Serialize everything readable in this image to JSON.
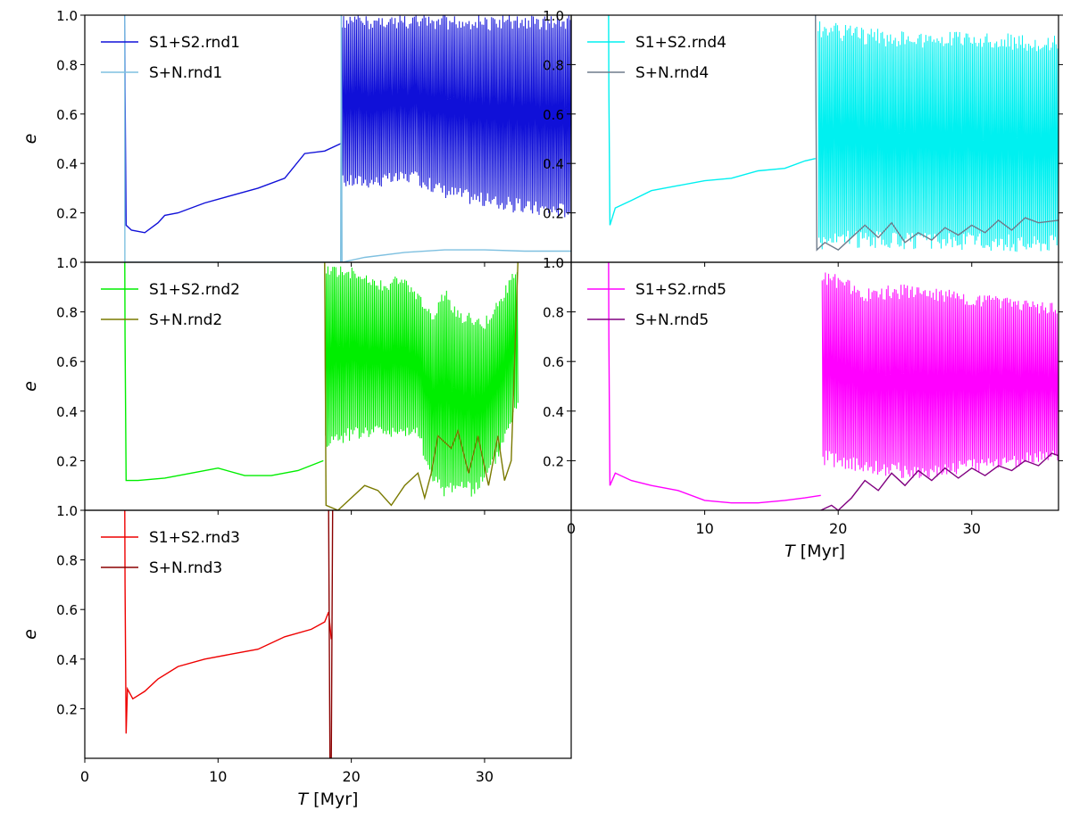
{
  "chart_data": [
    {
      "type": "line",
      "xlim": [
        0,
        36.5
      ],
      "ylim": [
        0,
        1.0
      ],
      "yticks": [
        0.2,
        0.4,
        0.6,
        0.8,
        1.0
      ],
      "ylabel": "e",
      "legend_position": "top-left",
      "series": [
        {
          "name": "S1+S2.rnd1",
          "color": "#1010d8",
          "oscillating_start": 19.3,
          "oscillating_end": 36.5,
          "points": [
            [
              3.0,
              1.0
            ],
            [
              3.02,
              0.7
            ],
            [
              3.1,
              0.15
            ],
            [
              3.5,
              0.13
            ],
            [
              4.5,
              0.12
            ],
            [
              5.5,
              0.16
            ],
            [
              6.0,
              0.19
            ],
            [
              7.0,
              0.2
            ],
            [
              9.0,
              0.24
            ],
            [
              11.0,
              0.27
            ],
            [
              13.0,
              0.3
            ],
            [
              15.0,
              0.34
            ],
            [
              16.5,
              0.44
            ],
            [
              18.0,
              0.45
            ],
            [
              19.2,
              0.48
            ]
          ],
          "upper": [
            [
              19.3,
              1.0
            ],
            [
              36.5,
              1.0
            ]
          ],
          "lower": [
            [
              19.3,
              0.3
            ],
            [
              22.0,
              0.3
            ],
            [
              24.5,
              0.32
            ],
            [
              27.0,
              0.26
            ],
            [
              30.0,
              0.22
            ],
            [
              33.0,
              0.19
            ],
            [
              35.0,
              0.18
            ],
            [
              36.5,
              0.18
            ]
          ]
        },
        {
          "name": "S+N.rnd1",
          "color": "#7ec0e0",
          "points": [
            [
              3.0,
              1.0
            ],
            [
              3.01,
              0.0
            ],
            [
              19.2,
              0.0
            ],
            [
              19.25,
              1.0
            ],
            [
              19.3,
              0.0
            ],
            [
              21.0,
              0.02
            ],
            [
              24.0,
              0.04
            ],
            [
              27.0,
              0.05
            ],
            [
              30.0,
              0.05
            ],
            [
              33.0,
              0.045
            ],
            [
              36.5,
              0.045
            ]
          ]
        }
      ]
    },
    {
      "type": "line",
      "xlim": [
        0,
        36.5
      ],
      "ylim": [
        0,
        1.0
      ],
      "yticks": [
        0.2,
        0.4,
        0.6,
        0.8,
        1.0
      ],
      "ylabel": "e",
      "legend_position": "top-left",
      "series": [
        {
          "name": "S1+S2.rnd2",
          "color": "#00ee00",
          "oscillating_start": 18.0,
          "oscillating_end": 32.5,
          "points": [
            [
              3.0,
              1.0
            ],
            [
              3.02,
              0.7
            ],
            [
              3.1,
              0.12
            ],
            [
              4.0,
              0.12
            ],
            [
              6.0,
              0.13
            ],
            [
              8.0,
              0.15
            ],
            [
              10.0,
              0.17
            ],
            [
              12.0,
              0.14
            ],
            [
              14.0,
              0.14
            ],
            [
              16.0,
              0.16
            ],
            [
              17.9,
              0.2
            ]
          ],
          "upper": [
            [
              18.0,
              1.0
            ],
            [
              20.0,
              0.98
            ],
            [
              22.0,
              0.93
            ],
            [
              24.0,
              0.95
            ],
            [
              25.0,
              0.88
            ],
            [
              26.0,
              0.8
            ],
            [
              27.0,
              0.9
            ],
            [
              28.0,
              0.82
            ],
            [
              29.0,
              0.8
            ],
            [
              30.0,
              0.78
            ],
            [
              31.0,
              0.85
            ],
            [
              32.0,
              0.95
            ],
            [
              32.5,
              1.0
            ]
          ],
          "lower": [
            [
              18.0,
              0.25
            ],
            [
              20.0,
              0.28
            ],
            [
              22.0,
              0.3
            ],
            [
              24.0,
              0.28
            ],
            [
              25.0,
              0.3
            ],
            [
              26.0,
              0.1
            ],
            [
              27.0,
              0.05
            ],
            [
              28.0,
              0.08
            ],
            [
              29.0,
              0.05
            ],
            [
              30.0,
              0.1
            ],
            [
              31.0,
              0.2
            ],
            [
              32.0,
              0.35
            ],
            [
              32.5,
              0.4
            ]
          ]
        },
        {
          "name": "S+N.rnd2",
          "color": "#7a7a00",
          "points": [
            [
              18.0,
              1.0
            ],
            [
              18.1,
              0.02
            ],
            [
              19.0,
              0.0
            ],
            [
              20.0,
              0.05
            ],
            [
              21.0,
              0.1
            ],
            [
              22.0,
              0.08
            ],
            [
              23.0,
              0.02
            ],
            [
              24.0,
              0.1
            ],
            [
              25.0,
              0.15
            ],
            [
              25.5,
              0.05
            ],
            [
              26.0,
              0.15
            ],
            [
              26.5,
              0.3
            ],
            [
              27.5,
              0.25
            ],
            [
              28.0,
              0.32
            ],
            [
              28.8,
              0.15
            ],
            [
              29.5,
              0.3
            ],
            [
              30.3,
              0.1
            ],
            [
              31.0,
              0.3
            ],
            [
              31.5,
              0.12
            ],
            [
              32.0,
              0.2
            ],
            [
              32.5,
              1.0
            ]
          ]
        }
      ]
    },
    {
      "type": "line",
      "xlim": [
        0,
        36.5
      ],
      "ylim": [
        0,
        1.0
      ],
      "xticks": [
        0,
        10,
        20,
        30
      ],
      "yticks": [
        0.2,
        0.4,
        0.6,
        0.8,
        1.0
      ],
      "xlabel": "T [Myr]",
      "ylabel": "e",
      "legend_position": "top-left",
      "series": [
        {
          "name": "S1+S2.rnd3",
          "color": "#ee0000",
          "points": [
            [
              3.0,
              1.0
            ],
            [
              3.02,
              0.7
            ],
            [
              3.1,
              0.1
            ],
            [
              3.2,
              0.28
            ],
            [
              3.6,
              0.24
            ],
            [
              4.5,
              0.27
            ],
            [
              5.5,
              0.32
            ],
            [
              7.0,
              0.37
            ],
            [
              9.0,
              0.4
            ],
            [
              11.0,
              0.42
            ],
            [
              13.0,
              0.44
            ],
            [
              15.0,
              0.49
            ],
            [
              17.0,
              0.52
            ],
            [
              18.0,
              0.55
            ],
            [
              18.3,
              0.59
            ],
            [
              18.5,
              0.48
            ]
          ]
        },
        {
          "name": "S+N.rnd3",
          "color": "#8b0000",
          "points": [
            [
              18.3,
              1.0
            ],
            [
              18.4,
              0.0
            ],
            [
              18.5,
              0.0
            ],
            [
              18.6,
              1.0
            ]
          ]
        }
      ]
    },
    {
      "type": "line",
      "xlim": [
        0,
        36.5
      ],
      "ylim": [
        0,
        1.0
      ],
      "yticks": [
        0.2,
        0.4,
        0.6,
        0.8,
        1.0
      ],
      "legend_position": "top-left",
      "series": [
        {
          "name": "S1+S2.rnd4",
          "color": "#00f0f0",
          "oscillating_start": 18.5,
          "oscillating_end": 36.5,
          "points": [
            [
              2.8,
              1.0
            ],
            [
              2.82,
              0.7
            ],
            [
              2.9,
              0.15
            ],
            [
              3.3,
              0.22
            ],
            [
              4.5,
              0.25
            ],
            [
              6.0,
              0.29
            ],
            [
              8.0,
              0.31
            ],
            [
              10.0,
              0.33
            ],
            [
              12.0,
              0.34
            ],
            [
              14.0,
              0.37
            ],
            [
              16.0,
              0.38
            ],
            [
              17.5,
              0.41
            ],
            [
              18.3,
              0.42
            ]
          ],
          "upper": [
            [
              18.5,
              0.98
            ],
            [
              22.0,
              0.95
            ],
            [
              26.0,
              0.93
            ],
            [
              30.0,
              0.94
            ],
            [
              34.0,
              0.92
            ],
            [
              36.5,
              0.93
            ]
          ],
          "lower": [
            [
              18.5,
              0.05
            ],
            [
              22.0,
              0.06
            ],
            [
              26.0,
              0.05
            ],
            [
              30.0,
              0.05
            ],
            [
              34.0,
              0.04
            ],
            [
              36.5,
              0.05
            ]
          ]
        },
        {
          "name": "S+N.rnd4",
          "color": "#6e7b8b",
          "points": [
            [
              18.3,
              1.0
            ],
            [
              18.4,
              0.05
            ],
            [
              19.0,
              0.08
            ],
            [
              20.0,
              0.05
            ],
            [
              21.0,
              0.1
            ],
            [
              22.0,
              0.15
            ],
            [
              23.0,
              0.1
            ],
            [
              24.0,
              0.16
            ],
            [
              25.0,
              0.08
            ],
            [
              26.0,
              0.12
            ],
            [
              27.0,
              0.09
            ],
            [
              28.0,
              0.14
            ],
            [
              29.0,
              0.11
            ],
            [
              30.0,
              0.15
            ],
            [
              31.0,
              0.12
            ],
            [
              32.0,
              0.17
            ],
            [
              33.0,
              0.13
            ],
            [
              34.0,
              0.18
            ],
            [
              35.0,
              0.16
            ],
            [
              36.5,
              0.17
            ]
          ]
        }
      ]
    },
    {
      "type": "line",
      "xlim": [
        0,
        36.5
      ],
      "ylim": [
        0,
        1.0
      ],
      "xticks": [
        0,
        10,
        20,
        30
      ],
      "yticks": [
        0.2,
        0.4,
        0.6,
        0.8,
        1.0
      ],
      "xlabel": "T [Myr]",
      "legend_position": "top-left",
      "series": [
        {
          "name": "S1+S2.rnd5",
          "color": "#ff00ff",
          "oscillating_start": 18.8,
          "oscillating_end": 36.5,
          "points": [
            [
              2.8,
              1.0
            ],
            [
              2.82,
              0.7
            ],
            [
              2.9,
              0.1
            ],
            [
              3.3,
              0.15
            ],
            [
              4.5,
              0.12
            ],
            [
              6.0,
              0.1
            ],
            [
              8.0,
              0.08
            ],
            [
              10.0,
              0.04
            ],
            [
              12.0,
              0.03
            ],
            [
              14.0,
              0.03
            ],
            [
              16.0,
              0.04
            ],
            [
              17.5,
              0.05
            ],
            [
              18.7,
              0.06
            ]
          ],
          "upper": [
            [
              18.8,
              0.98
            ],
            [
              22.0,
              0.9
            ],
            [
              26.0,
              0.92
            ],
            [
              30.0,
              0.88
            ],
            [
              34.0,
              0.85
            ],
            [
              36.5,
              0.84
            ]
          ],
          "lower": [
            [
              18.8,
              0.18
            ],
            [
              22.0,
              0.15
            ],
            [
              26.0,
              0.12
            ],
            [
              30.0,
              0.15
            ],
            [
              34.0,
              0.18
            ],
            [
              36.5,
              0.2
            ]
          ]
        },
        {
          "name": "S+N.rnd5",
          "color": "#800080",
          "points": [
            [
              18.7,
              0.0
            ],
            [
              19.5,
              0.02
            ],
            [
              20.0,
              0.0
            ],
            [
              21.0,
              0.05
            ],
            [
              22.0,
              0.12
            ],
            [
              23.0,
              0.08
            ],
            [
              24.0,
              0.15
            ],
            [
              25.0,
              0.1
            ],
            [
              26.0,
              0.16
            ],
            [
              27.0,
              0.12
            ],
            [
              28.0,
              0.17
            ],
            [
              29.0,
              0.13
            ],
            [
              30.0,
              0.17
            ],
            [
              31.0,
              0.14
            ],
            [
              32.0,
              0.18
            ],
            [
              33.0,
              0.16
            ],
            [
              34.0,
              0.2
            ],
            [
              35.0,
              0.18
            ],
            [
              36.0,
              0.23
            ],
            [
              36.5,
              0.22
            ]
          ]
        }
      ]
    }
  ]
}
